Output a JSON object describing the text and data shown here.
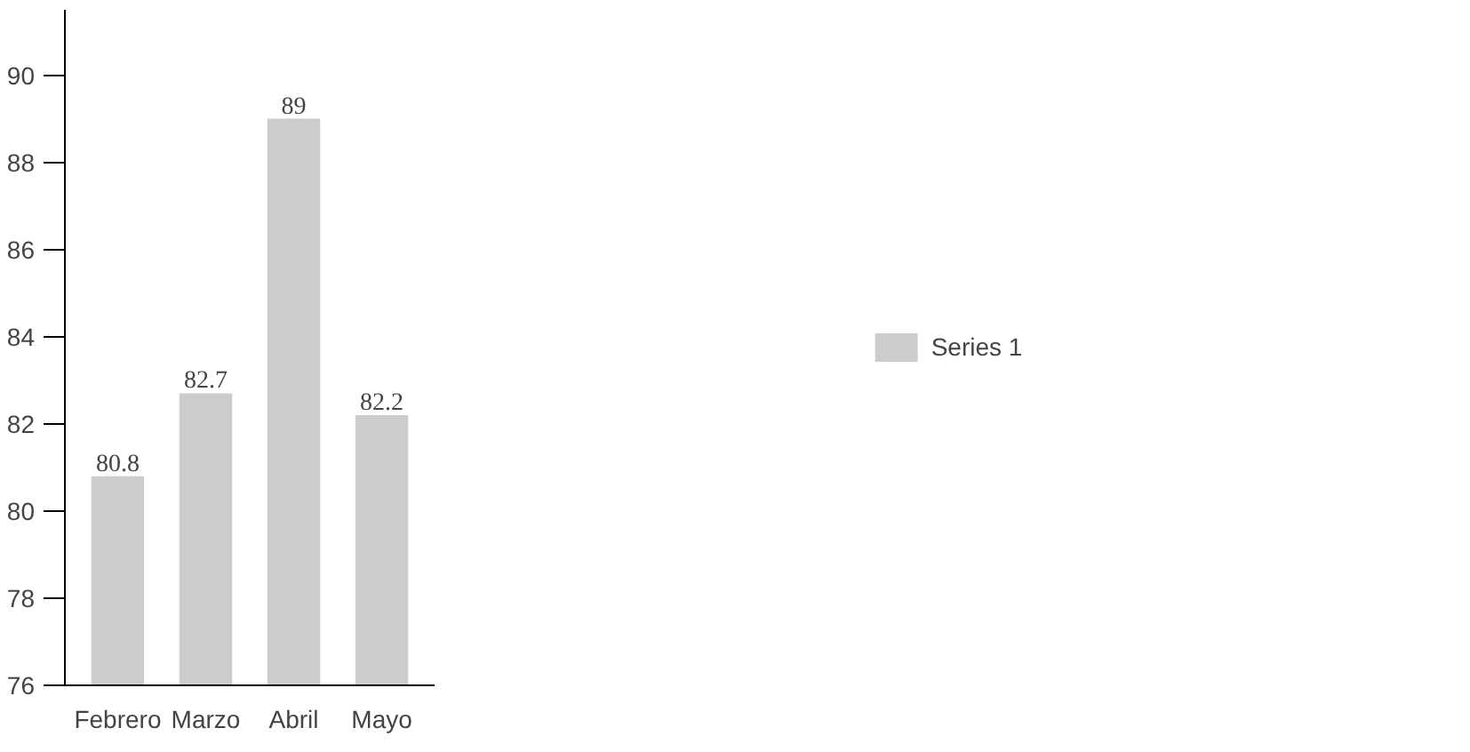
{
  "chart_data": {
    "type": "bar",
    "categories": [
      "Febrero",
      "Marzo",
      "Abril",
      "Mayo"
    ],
    "series": [
      {
        "name": "Series 1",
        "color": "#cccccc",
        "values": [
          80.8,
          82.7,
          89,
          82.2
        ]
      }
    ],
    "ylim": [
      76,
      91.5
    ],
    "yticks": [
      76,
      78,
      80,
      82,
      84,
      86,
      88,
      90
    ],
    "data_labels": true,
    "grid": false,
    "legend": "right"
  }
}
